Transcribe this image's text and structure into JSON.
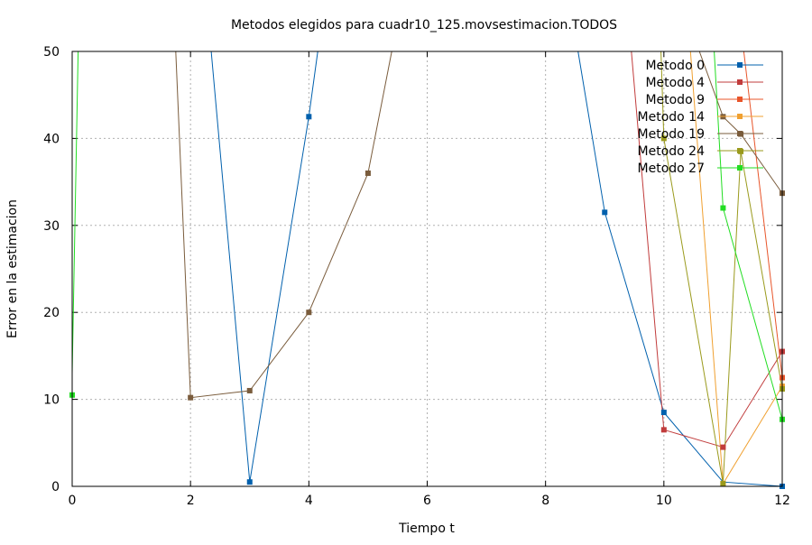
{
  "chart_data": {
    "type": "line",
    "title": "Metodos elegidos para cuadr10_125.movsestimacion.TODOS",
    "xlabel": "Tiempo t",
    "ylabel": "Error en la estimacion",
    "xlim": [
      0,
      12
    ],
    "ylim": [
      0,
      50
    ],
    "xticks": [
      0,
      2,
      4,
      6,
      8,
      10,
      12
    ],
    "yticks": [
      0,
      10,
      20,
      30,
      40,
      50
    ],
    "xtick_labels": [
      "0",
      "2",
      "4",
      "6",
      "8",
      "10",
      "12"
    ],
    "ytick_labels": [
      "0",
      "10",
      "20",
      "30",
      "40",
      "50"
    ],
    "grid": true,
    "legend_position": "top-right",
    "series": [
      {
        "name": "Metodo 0",
        "color": "#0060ad",
        "points": [
          {
            "x": 2.35,
            "y": 50,
            "marker": false
          },
          {
            "x": 3,
            "y": 0.5,
            "marker": true
          },
          {
            "x": 4,
            "y": 42.5,
            "marker": true
          },
          {
            "x": 4.15,
            "y": 50,
            "marker": false
          },
          {
            "x": 8.55,
            "y": 50,
            "marker": false
          },
          {
            "x": 9,
            "y": 31.5,
            "marker": true
          },
          {
            "x": 10,
            "y": 8.5,
            "marker": true
          },
          {
            "x": 11,
            "y": 0.5,
            "marker": false
          },
          {
            "x": 12,
            "y": 0,
            "marker": true
          }
        ]
      },
      {
        "name": "Metodo 4",
        "color": "#c13c3c",
        "points": [
          {
            "x": 9.45,
            "y": 50,
            "marker": false
          },
          {
            "x": 10,
            "y": 6.5,
            "marker": true
          },
          {
            "x": 11,
            "y": 4.5,
            "marker": true
          },
          {
            "x": 12,
            "y": 15.5,
            "marker": true
          }
        ]
      },
      {
        "name": "Metodo 9",
        "color": "#e8552a",
        "points": [
          {
            "x": 11.35,
            "y": 50,
            "marker": false
          },
          {
            "x": 12,
            "y": 12.5,
            "marker": true
          }
        ]
      },
      {
        "name": "Metodo 14",
        "color": "#f0a030",
        "points": [
          {
            "x": 10.45,
            "y": 50,
            "marker": false
          },
          {
            "x": 11,
            "y": 0.3,
            "marker": true
          },
          {
            "x": 12,
            "y": 11.5,
            "marker": true
          }
        ]
      },
      {
        "name": "Metodo 19",
        "color": "#7a5c3c",
        "points": [
          {
            "x": 1.75,
            "y": 50,
            "marker": false
          },
          {
            "x": 2,
            "y": 10.2,
            "marker": true
          },
          {
            "x": 3,
            "y": 11,
            "marker": true
          },
          {
            "x": 4,
            "y": 20,
            "marker": true
          },
          {
            "x": 5,
            "y": 36,
            "marker": true
          },
          {
            "x": 5.4,
            "y": 50,
            "marker": false
          },
          {
            "x": 10.6,
            "y": 50,
            "marker": false
          },
          {
            "x": 11,
            "y": 42.5,
            "marker": true
          },
          {
            "x": 11.3,
            "y": 40.5,
            "marker": true
          },
          {
            "x": 12,
            "y": 33.7,
            "marker": true
          }
        ]
      },
      {
        "name": "Metodo 24",
        "color": "#9a9a1c",
        "points": [
          {
            "x": 9.95,
            "y": 50,
            "marker": false
          },
          {
            "x": 10,
            "y": 40,
            "marker": true
          },
          {
            "x": 11,
            "y": 0.3,
            "marker": true
          },
          {
            "x": 11.3,
            "y": 38.5,
            "marker": true
          },
          {
            "x": 12,
            "y": 11.2,
            "marker": true
          }
        ]
      },
      {
        "name": "Metodo 27",
        "color": "#22dd22",
        "points": [
          {
            "x": 0,
            "y": 10.5,
            "marker": true
          },
          {
            "x": 0,
            "y": 13,
            "marker": false
          },
          {
            "x": 0.1,
            "y": 50,
            "marker": false
          },
          {
            "x": 10.85,
            "y": 50,
            "marker": false
          },
          {
            "x": 11,
            "y": 32,
            "marker": true
          },
          {
            "x": 12,
            "y": 7.7,
            "marker": true
          }
        ]
      }
    ]
  }
}
